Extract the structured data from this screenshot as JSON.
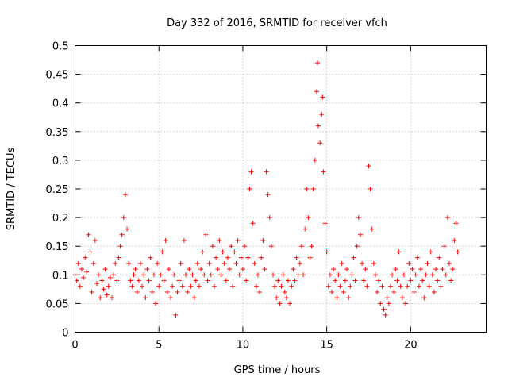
{
  "chart_data": {
    "type": "scatter",
    "title": "Day 332 of 2016, SRMTID for receiver vfch",
    "xlabel": "GPS time / hours",
    "ylabel": "SRMTID / TECUs",
    "xlim": [
      0,
      24.5
    ],
    "ylim": [
      0,
      0.5
    ],
    "xticks": [
      0,
      5,
      10,
      15,
      20
    ],
    "xtick_labels": [
      "0",
      "5",
      "10",
      "15",
      "20"
    ],
    "yticks": [
      0,
      0.05,
      0.1,
      0.15,
      0.2,
      0.25,
      0.3,
      0.35,
      0.4,
      0.45,
      0.5
    ],
    "ytick_labels": [
      "0",
      "0.05",
      "0.1",
      "0.15",
      "0.2",
      "0.25",
      "0.3",
      "0.35",
      "0.4",
      "0.45",
      "0.5"
    ],
    "grid": true,
    "marker": "+",
    "marker_color": "#ff0000",
    "series": [
      {
        "name": "SRMTID",
        "points": [
          [
            0.0,
            0.1
          ],
          [
            0.1,
            0.09
          ],
          [
            0.2,
            0.12
          ],
          [
            0.3,
            0.08
          ],
          [
            0.4,
            0.11
          ],
          [
            0.5,
            0.095
          ],
          [
            0.6,
            0.13
          ],
          [
            0.7,
            0.105
          ],
          [
            0.8,
            0.17
          ],
          [
            0.9,
            0.14
          ],
          [
            1.0,
            0.07
          ],
          [
            1.1,
            0.12
          ],
          [
            1.2,
            0.16
          ],
          [
            1.3,
            0.085
          ],
          [
            1.4,
            0.1
          ],
          [
            1.5,
            0.06
          ],
          [
            1.6,
            0.09
          ],
          [
            1.7,
            0.075
          ],
          [
            1.8,
            0.11
          ],
          [
            1.9,
            0.065
          ],
          [
            2.0,
            0.08
          ],
          [
            2.1,
            0.095
          ],
          [
            2.2,
            0.06
          ],
          [
            2.3,
            0.1
          ],
          [
            2.4,
            0.12
          ],
          [
            2.5,
            0.09
          ],
          [
            2.6,
            0.13
          ],
          [
            2.7,
            0.15
          ],
          [
            2.8,
            0.17
          ],
          [
            2.9,
            0.2
          ],
          [
            3.0,
            0.24
          ],
          [
            3.1,
            0.18
          ],
          [
            3.2,
            0.12
          ],
          [
            3.3,
            0.09
          ],
          [
            3.4,
            0.08
          ],
          [
            3.5,
            0.1
          ],
          [
            3.6,
            0.11
          ],
          [
            3.7,
            0.07
          ],
          [
            3.8,
            0.09
          ],
          [
            3.9,
            0.12
          ],
          [
            4.0,
            0.08
          ],
          [
            4.1,
            0.1
          ],
          [
            4.2,
            0.06
          ],
          [
            4.3,
            0.11
          ],
          [
            4.4,
            0.09
          ],
          [
            4.5,
            0.13
          ],
          [
            4.6,
            0.07
          ],
          [
            4.7,
            0.1
          ],
          [
            4.8,
            0.05
          ],
          [
            4.9,
            0.12
          ],
          [
            5.0,
            0.08
          ],
          [
            5.1,
            0.1
          ],
          [
            5.2,
            0.14
          ],
          [
            5.3,
            0.09
          ],
          [
            5.4,
            0.16
          ],
          [
            5.5,
            0.07
          ],
          [
            5.6,
            0.11
          ],
          [
            5.7,
            0.06
          ],
          [
            5.8,
            0.08
          ],
          [
            5.9,
            0.1
          ],
          [
            6.0,
            0.03
          ],
          [
            6.1,
            0.07
          ],
          [
            6.2,
            0.09
          ],
          [
            6.3,
            0.12
          ],
          [
            6.4,
            0.08
          ],
          [
            6.5,
            0.16
          ],
          [
            6.6,
            0.1
          ],
          [
            6.7,
            0.07
          ],
          [
            6.8,
            0.11
          ],
          [
            6.9,
            0.08
          ],
          [
            7.0,
            0.1
          ],
          [
            7.1,
            0.06
          ],
          [
            7.2,
            0.09
          ],
          [
            7.3,
            0.12
          ],
          [
            7.4,
            0.08
          ],
          [
            7.5,
            0.11
          ],
          [
            7.6,
            0.14
          ],
          [
            7.7,
            0.1
          ],
          [
            7.8,
            0.17
          ],
          [
            7.9,
            0.09
          ],
          [
            8.0,
            0.12
          ],
          [
            8.1,
            0.1
          ],
          [
            8.2,
            0.15
          ],
          [
            8.3,
            0.08
          ],
          [
            8.4,
            0.13
          ],
          [
            8.5,
            0.11
          ],
          [
            8.6,
            0.16
          ],
          [
            8.7,
            0.1
          ],
          [
            8.8,
            0.14
          ],
          [
            8.9,
            0.12
          ],
          [
            9.0,
            0.09
          ],
          [
            9.1,
            0.13
          ],
          [
            9.2,
            0.11
          ],
          [
            9.3,
            0.15
          ],
          [
            9.4,
            0.08
          ],
          [
            9.5,
            0.14
          ],
          [
            9.6,
            0.12
          ],
          [
            9.7,
            0.16
          ],
          [
            9.8,
            0.1
          ],
          [
            9.9,
            0.13
          ],
          [
            10.0,
            0.11
          ],
          [
            10.1,
            0.15
          ],
          [
            10.2,
            0.09
          ],
          [
            10.3,
            0.13
          ],
          [
            10.4,
            0.25
          ],
          [
            10.5,
            0.28
          ],
          [
            10.6,
            0.19
          ],
          [
            10.7,
            0.12
          ],
          [
            10.8,
            0.08
          ],
          [
            10.9,
            0.1
          ],
          [
            11.0,
            0.07
          ],
          [
            11.1,
            0.13
          ],
          [
            11.2,
            0.16
          ],
          [
            11.3,
            0.11
          ],
          [
            11.4,
            0.28
          ],
          [
            11.5,
            0.24
          ],
          [
            11.6,
            0.2
          ],
          [
            11.7,
            0.15
          ],
          [
            11.8,
            0.1
          ],
          [
            11.9,
            0.08
          ],
          [
            12.0,
            0.06
          ],
          [
            12.1,
            0.09
          ],
          [
            12.2,
            0.05
          ],
          [
            12.3,
            0.08
          ],
          [
            12.4,
            0.1
          ],
          [
            12.5,
            0.07
          ],
          [
            12.6,
            0.06
          ],
          [
            12.7,
            0.09
          ],
          [
            12.8,
            0.05
          ],
          [
            12.9,
            0.08
          ],
          [
            13.0,
            0.11
          ],
          [
            13.1,
            0.09
          ],
          [
            13.2,
            0.13
          ],
          [
            13.3,
            0.1
          ],
          [
            13.4,
            0.12
          ],
          [
            13.5,
            0.15
          ],
          [
            13.6,
            0.1
          ],
          [
            13.7,
            0.18
          ],
          [
            13.8,
            0.25
          ],
          [
            13.9,
            0.2
          ],
          [
            14.0,
            0.13
          ],
          [
            14.1,
            0.15
          ],
          [
            14.2,
            0.25
          ],
          [
            14.3,
            0.3
          ],
          [
            14.4,
            0.42
          ],
          [
            14.45,
            0.47
          ],
          [
            14.5,
            0.36
          ],
          [
            14.6,
            0.33
          ],
          [
            14.7,
            0.38
          ],
          [
            14.75,
            0.41
          ],
          [
            14.8,
            0.28
          ],
          [
            14.9,
            0.19
          ],
          [
            15.0,
            0.14
          ],
          [
            15.1,
            0.08
          ],
          [
            15.2,
            0.1
          ],
          [
            15.3,
            0.07
          ],
          [
            15.4,
            0.11
          ],
          [
            15.5,
            0.09
          ],
          [
            15.6,
            0.06
          ],
          [
            15.7,
            0.1
          ],
          [
            15.8,
            0.08
          ],
          [
            15.9,
            0.12
          ],
          [
            16.0,
            0.07
          ],
          [
            16.1,
            0.09
          ],
          [
            16.2,
            0.11
          ],
          [
            16.3,
            0.06
          ],
          [
            16.4,
            0.08
          ],
          [
            16.5,
            0.1
          ],
          [
            16.6,
            0.13
          ],
          [
            16.7,
            0.09
          ],
          [
            16.8,
            0.15
          ],
          [
            16.9,
            0.2
          ],
          [
            17.0,
            0.17
          ],
          [
            17.1,
            0.12
          ],
          [
            17.2,
            0.09
          ],
          [
            17.3,
            0.11
          ],
          [
            17.4,
            0.08
          ],
          [
            17.5,
            0.29
          ],
          [
            17.6,
            0.25
          ],
          [
            17.7,
            0.18
          ],
          [
            17.8,
            0.12
          ],
          [
            17.9,
            0.1
          ],
          [
            18.0,
            0.07
          ],
          [
            18.1,
            0.09
          ],
          [
            18.2,
            0.05
          ],
          [
            18.3,
            0.08
          ],
          [
            18.4,
            0.04
          ],
          [
            18.5,
            0.03
          ],
          [
            18.6,
            0.06
          ],
          [
            18.7,
            0.05
          ],
          [
            18.8,
            0.08
          ],
          [
            18.9,
            0.1
          ],
          [
            19.0,
            0.07
          ],
          [
            19.1,
            0.11
          ],
          [
            19.2,
            0.09
          ],
          [
            19.3,
            0.14
          ],
          [
            19.4,
            0.08
          ],
          [
            19.5,
            0.06
          ],
          [
            19.6,
            0.1
          ],
          [
            19.7,
            0.05
          ],
          [
            19.8,
            0.08
          ],
          [
            19.9,
            0.12
          ],
          [
            20.0,
            0.09
          ],
          [
            20.1,
            0.11
          ],
          [
            20.2,
            0.07
          ],
          [
            20.3,
            0.1
          ],
          [
            20.4,
            0.13
          ],
          [
            20.5,
            0.08
          ],
          [
            20.6,
            0.11
          ],
          [
            20.7,
            0.09
          ],
          [
            20.8,
            0.06
          ],
          [
            20.9,
            0.1
          ],
          [
            21.0,
            0.12
          ],
          [
            21.1,
            0.08
          ],
          [
            21.2,
            0.14
          ],
          [
            21.3,
            0.1
          ],
          [
            21.4,
            0.07
          ],
          [
            21.5,
            0.11
          ],
          [
            21.6,
            0.09
          ],
          [
            21.7,
            0.13
          ],
          [
            21.8,
            0.08
          ],
          [
            21.9,
            0.11
          ],
          [
            22.0,
            0.15
          ],
          [
            22.1,
            0.1
          ],
          [
            22.2,
            0.2
          ],
          [
            22.3,
            0.12
          ],
          [
            22.4,
            0.09
          ],
          [
            22.5,
            0.11
          ],
          [
            22.6,
            0.16
          ],
          [
            22.7,
            0.19
          ],
          [
            22.8,
            0.14
          ]
        ]
      }
    ]
  }
}
